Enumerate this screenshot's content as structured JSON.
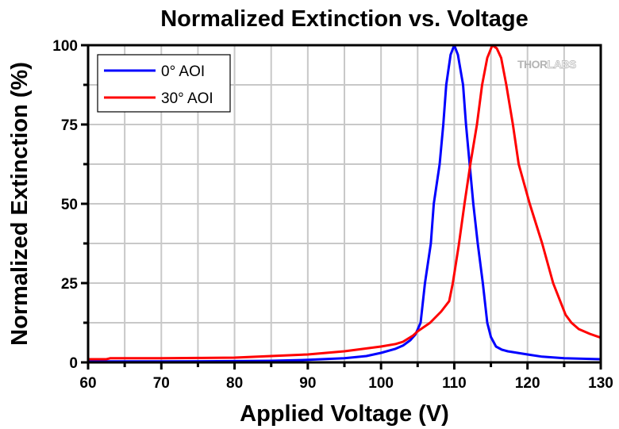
{
  "chart_data": {
    "type": "line",
    "title": "Normalized Extinction vs. Voltage",
    "xlabel": "Applied Voltage (V)",
    "ylabel": "Normalized Extinction (%)",
    "xlim": [
      60,
      130
    ],
    "ylim": [
      0,
      100
    ],
    "x_ticks": [
      60,
      70,
      80,
      90,
      100,
      110,
      120,
      130
    ],
    "x_tick_labels": [
      "60",
      "70",
      "80",
      "90",
      "100",
      "110",
      "120",
      "130"
    ],
    "x_minor_step": 5,
    "y_ticks": [
      0,
      25,
      50,
      75,
      100
    ],
    "y_tick_labels": [
      "0",
      "25",
      "50",
      "75",
      "100"
    ],
    "y_minor_step": 12.5,
    "grid": true,
    "legend_position": "top-left",
    "watermark": {
      "bold": "THOR",
      "light": "LABS"
    },
    "series": [
      {
        "name": "0° AOI",
        "color": "#0000ff",
        "x": [
          60,
          70,
          80,
          85,
          90,
          95,
          98,
          100,
          102,
          103,
          104,
          104.7,
          105.4,
          106,
          106.8,
          107.2,
          108,
          108.5,
          108.9,
          109.5,
          110,
          110.5,
          111.2,
          111.6,
          112.1,
          112.6,
          113.2,
          113.9,
          114.5,
          115,
          115.7,
          116.5,
          117.3,
          120,
          122,
          125,
          130
        ],
        "y": [
          0.3,
          0.3,
          0.4,
          0.5,
          0.8,
          1.3,
          2.0,
          3.0,
          4.3,
          5.3,
          7.0,
          8.8,
          12.5,
          25,
          37.5,
          50,
          62.5,
          75,
          87.5,
          97,
          100,
          97,
          87.5,
          75,
          62.5,
          50,
          37.5,
          25,
          12.5,
          8,
          5,
          4,
          3.5,
          2.5,
          1.8,
          1.3,
          1.0
        ]
      },
      {
        "name": "30° AOI",
        "color": "#ff0000",
        "x": [
          60,
          62.5,
          63,
          70,
          75,
          80,
          85,
          90,
          95,
          100,
          102,
          103,
          104.4,
          105,
          106.7,
          108.2,
          109.3,
          109.8,
          110.6,
          111.4,
          112.2,
          113.1,
          113.8,
          114.5,
          115.2,
          115.8,
          116.4,
          117.1,
          118,
          118.8,
          120.3,
          122,
          123.5,
          125.2,
          126,
          127,
          128.5,
          130
        ],
        "y": [
          1.0,
          1.0,
          1.3,
          1.3,
          1.4,
          1.5,
          2.0,
          2.5,
          3.5,
          5.0,
          5.8,
          6.5,
          8.5,
          9.8,
          12.5,
          16,
          19.3,
          25,
          36.8,
          50,
          62.5,
          75,
          87.5,
          96,
          100,
          99,
          96,
          87.5,
          75,
          62.5,
          50,
          37.5,
          25,
          15,
          12.5,
          10.5,
          9,
          7.8
        ]
      }
    ]
  }
}
